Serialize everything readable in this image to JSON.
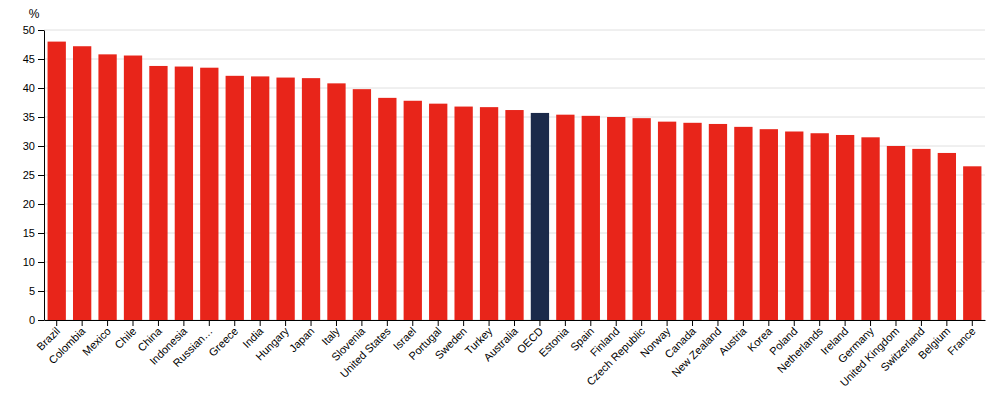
{
  "chart_data": {
    "type": "bar",
    "ylabel": "%",
    "categories": [
      "Brazil",
      "Colombia",
      "Mexico",
      "Chile",
      "China",
      "Indonesia",
      "Russian…",
      "Greece",
      "India",
      "Hungary",
      "Japan",
      "Italy",
      "Slovenia",
      "United States",
      "Israel",
      "Portugal",
      "Sweden",
      "Turkey",
      "Australia",
      "OECD",
      "Estonia",
      "Spain",
      "Finland",
      "Czech Republic",
      "Norway",
      "Canada",
      "New Zealand",
      "Austria",
      "Korea",
      "Poland",
      "Netherlands",
      "Ireland",
      "Germany",
      "United Kingdom",
      "Switzerland",
      "Belgium",
      "France"
    ],
    "values": [
      48.0,
      47.2,
      45.8,
      45.6,
      43.8,
      43.7,
      43.5,
      42.1,
      42.0,
      41.8,
      41.7,
      40.8,
      39.8,
      38.3,
      37.8,
      37.3,
      36.8,
      36.7,
      36.2,
      35.7,
      35.4,
      35.2,
      35.0,
      34.8,
      34.2,
      34.0,
      33.8,
      33.3,
      32.9,
      32.5,
      32.2,
      31.9,
      31.5,
      30.0,
      29.5,
      28.8,
      26.5
    ],
    "colors": [
      "#e8251a",
      "#e8251a",
      "#e8251a",
      "#e8251a",
      "#e8251a",
      "#e8251a",
      "#e8251a",
      "#e8251a",
      "#e8251a",
      "#e8251a",
      "#e8251a",
      "#e8251a",
      "#e8251a",
      "#e8251a",
      "#e8251a",
      "#e8251a",
      "#e8251a",
      "#e8251a",
      "#e8251a",
      "#1b2a4a",
      "#e8251a",
      "#e8251a",
      "#e8251a",
      "#e8251a",
      "#e8251a",
      "#e8251a",
      "#e8251a",
      "#e8251a",
      "#e8251a",
      "#e8251a",
      "#e8251a",
      "#e8251a",
      "#e8251a",
      "#e8251a",
      "#e8251a",
      "#e8251a",
      "#e8251a"
    ],
    "ylim": [
      0,
      50
    ],
    "yticks": [
      0,
      5,
      10,
      15,
      20,
      25,
      30,
      35,
      40,
      45,
      50
    ],
    "grid": true
  }
}
